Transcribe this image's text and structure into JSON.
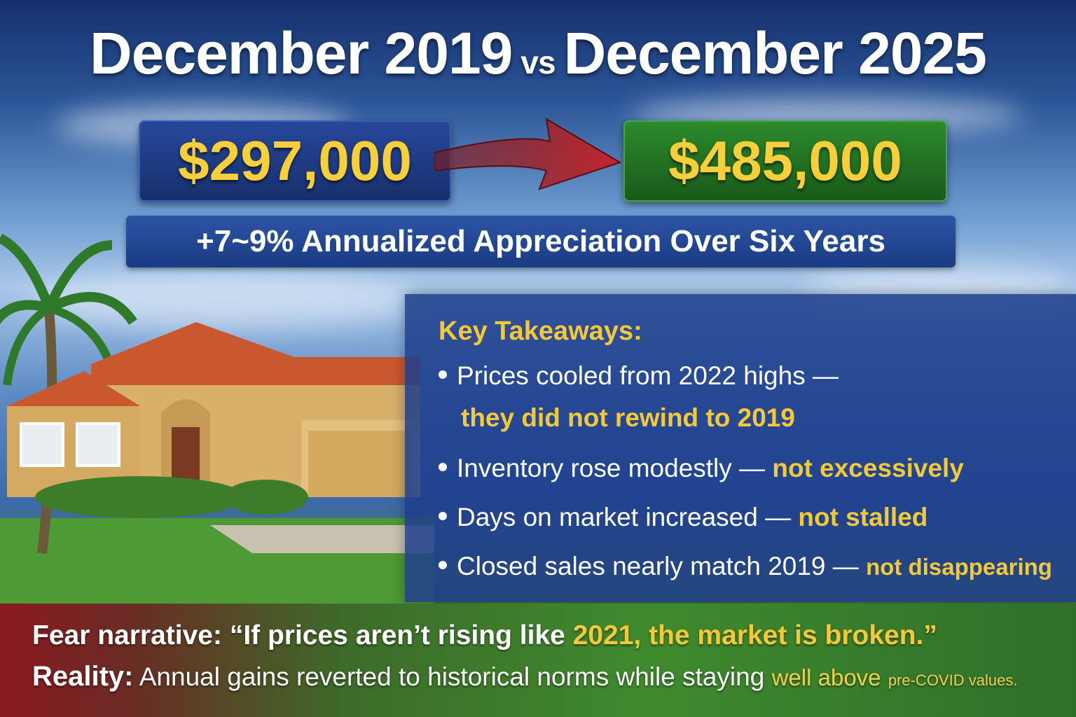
{
  "title": {
    "left": "December 2019",
    "vs": "vs",
    "right": "December 2025"
  },
  "prices": {
    "before": "$297,000",
    "after": "$485,000"
  },
  "subtitle": "+7~9% Annualized Appreciation Over Six Years",
  "takeaways": {
    "heading": "Key Takeaways:",
    "items": [
      {
        "text": "Prices cooled from 2022 highs —",
        "highlight": "they did not rewind to 2019"
      },
      {
        "text": "Inventory rose modestly —",
        "highlight": "not excessively"
      },
      {
        "text": "Days on market increased —",
        "highlight": "not stalled"
      },
      {
        "text": "Closed sales nearly match 2019 —",
        "highlight": "not disappearing"
      }
    ]
  },
  "fear": {
    "label": "Fear narrative:",
    "quote_start": "“If prices aren’t rising like ",
    "quote_year": "2021, the market is broken.”"
  },
  "reality": {
    "label": "Reality:",
    "text": "Annual gains reverted to historical norms while staying",
    "emph1": "well above",
    "emph2": "pre-COVID values."
  },
  "colors": {
    "accent_gold": "#f3c93a",
    "panel_blue": "#1e3e8c",
    "green_box": "#2c8a2c",
    "arrow_red": "#b3202a"
  }
}
